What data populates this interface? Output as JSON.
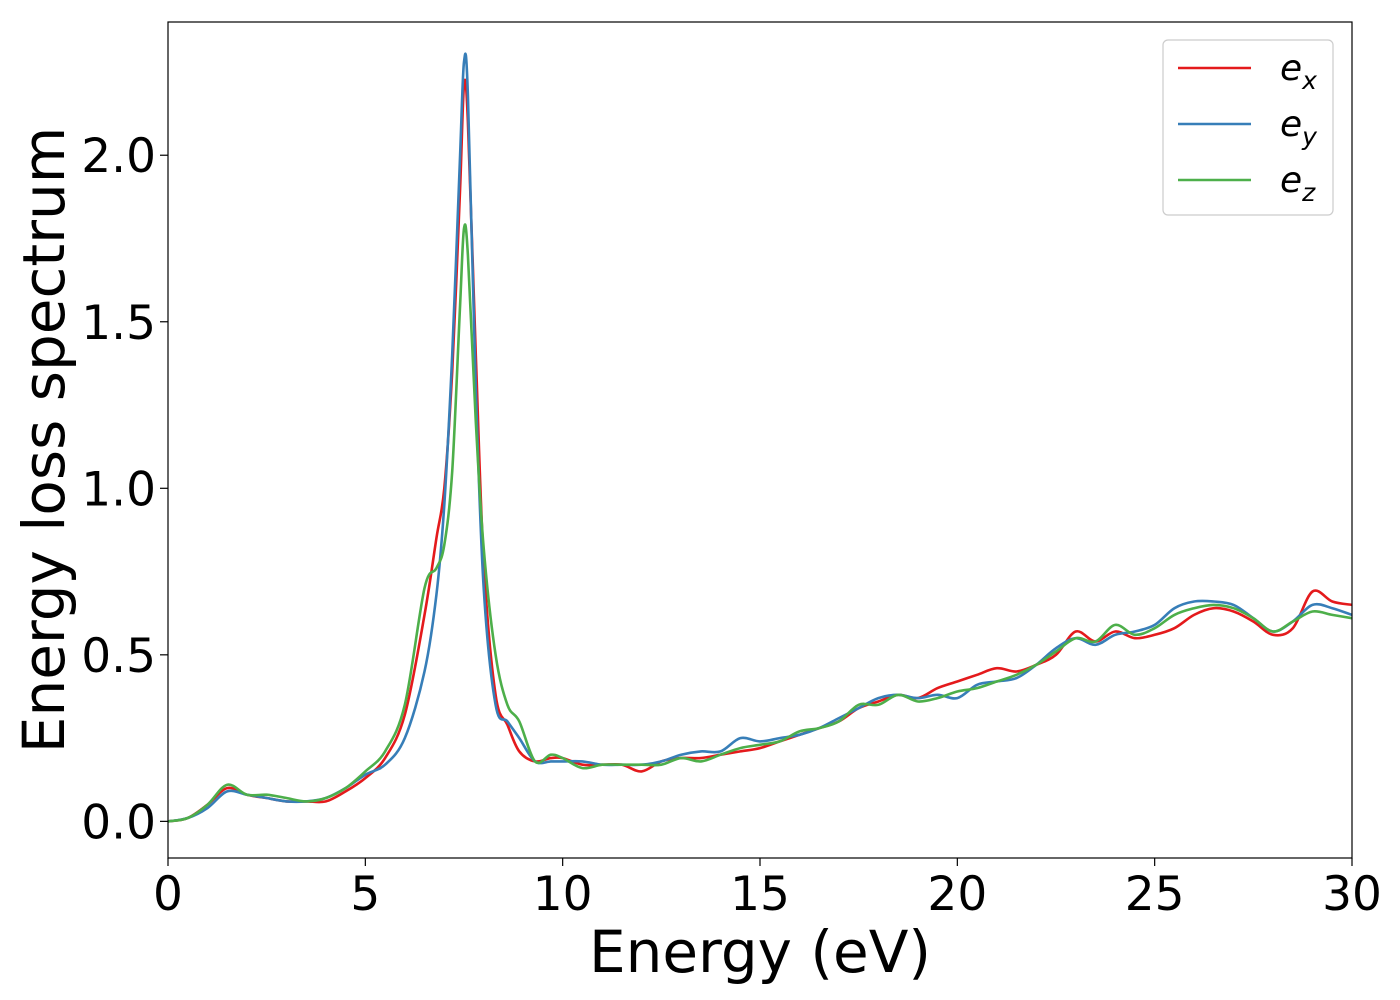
{
  "chart_data": {
    "type": "line",
    "title": "",
    "xlabel": "Energy (eV)",
    "ylabel": "Energy loss spectrum",
    "xlim": [
      0,
      30
    ],
    "ylim": [
      -0.11,
      2.4
    ],
    "xticks": [
      0,
      5,
      10,
      15,
      20,
      25,
      30
    ],
    "xtick_labels": [
      "0",
      "5",
      "10",
      "15",
      "20",
      "25",
      "30"
    ],
    "yticks": [
      0.0,
      0.5,
      1.0,
      1.5,
      2.0
    ],
    "ytick_labels": [
      "0.0",
      "0.5",
      "1.0",
      "1.5",
      "2.0"
    ],
    "grid": false,
    "legend_position": "top-right",
    "series": [
      {
        "name": "e",
        "subscript": "x",
        "color": "#e41a1c",
        "x": [
          0,
          0.5,
          1.0,
          1.5,
          2.0,
          2.5,
          3.0,
          3.5,
          4.0,
          4.5,
          5.0,
          5.5,
          6.0,
          6.5,
          6.8,
          7.0,
          7.2,
          7.4,
          7.5,
          7.6,
          7.8,
          8.0,
          8.3,
          8.6,
          8.9,
          9.3,
          9.7,
          10.0,
          10.5,
          11.0,
          11.5,
          12.0,
          12.5,
          13.0,
          13.5,
          14.0,
          14.5,
          15.0,
          15.5,
          16.0,
          16.5,
          17.0,
          17.5,
          18.0,
          18.5,
          19.0,
          19.5,
          20.0,
          20.5,
          21.0,
          21.5,
          22.0,
          22.5,
          23.0,
          23.5,
          24.0,
          24.5,
          25.0,
          25.5,
          26.0,
          26.5,
          27.0,
          27.5,
          28.0,
          28.5,
          29.0,
          29.5,
          30.0
        ],
        "y": [
          0.0,
          0.01,
          0.05,
          0.1,
          0.08,
          0.07,
          0.06,
          0.06,
          0.06,
          0.09,
          0.13,
          0.19,
          0.32,
          0.62,
          0.85,
          1.0,
          1.35,
          1.9,
          2.21,
          2.1,
          1.4,
          0.78,
          0.38,
          0.29,
          0.21,
          0.18,
          0.19,
          0.19,
          0.17,
          0.17,
          0.17,
          0.15,
          0.18,
          0.19,
          0.19,
          0.2,
          0.21,
          0.22,
          0.24,
          0.26,
          0.28,
          0.3,
          0.34,
          0.36,
          0.38,
          0.37,
          0.4,
          0.42,
          0.44,
          0.46,
          0.45,
          0.47,
          0.5,
          0.57,
          0.54,
          0.57,
          0.55,
          0.56,
          0.58,
          0.62,
          0.64,
          0.63,
          0.6,
          0.56,
          0.58,
          0.69,
          0.66,
          0.65
        ]
      },
      {
        "name": "e",
        "subscript": "y",
        "color": "#377eb8",
        "x": [
          0,
          0.5,
          1.0,
          1.5,
          2.0,
          2.5,
          3.0,
          3.5,
          4.0,
          4.5,
          5.0,
          5.5,
          6.0,
          6.5,
          6.8,
          7.0,
          7.2,
          7.4,
          7.5,
          7.6,
          7.8,
          8.0,
          8.3,
          8.6,
          8.9,
          9.3,
          9.7,
          10.0,
          10.5,
          11.0,
          11.5,
          12.0,
          12.5,
          13.0,
          13.5,
          14.0,
          14.5,
          15.0,
          15.5,
          16.0,
          16.5,
          17.0,
          17.5,
          18.0,
          18.5,
          19.0,
          19.5,
          20.0,
          20.5,
          21.0,
          21.5,
          22.0,
          22.5,
          23.0,
          23.5,
          24.0,
          24.5,
          25.0,
          25.5,
          26.0,
          26.5,
          27.0,
          27.5,
          28.0,
          28.5,
          29.0,
          29.5,
          30.0
        ],
        "y": [
          0.0,
          0.01,
          0.04,
          0.09,
          0.08,
          0.07,
          0.06,
          0.06,
          0.07,
          0.1,
          0.14,
          0.17,
          0.25,
          0.45,
          0.68,
          0.95,
          1.4,
          2.0,
          2.28,
          2.18,
          1.3,
          0.7,
          0.35,
          0.3,
          0.25,
          0.18,
          0.18,
          0.18,
          0.18,
          0.17,
          0.17,
          0.17,
          0.18,
          0.2,
          0.21,
          0.21,
          0.25,
          0.24,
          0.25,
          0.26,
          0.28,
          0.31,
          0.34,
          0.37,
          0.38,
          0.37,
          0.38,
          0.37,
          0.41,
          0.42,
          0.43,
          0.47,
          0.52,
          0.55,
          0.53,
          0.56,
          0.57,
          0.59,
          0.64,
          0.66,
          0.66,
          0.65,
          0.61,
          0.57,
          0.6,
          0.65,
          0.64,
          0.62
        ]
      },
      {
        "name": "e",
        "subscript": "z",
        "color": "#4daf4a",
        "x": [
          0,
          0.5,
          1.0,
          1.5,
          2.0,
          2.5,
          3.0,
          3.5,
          4.0,
          4.5,
          5.0,
          5.5,
          6.0,
          6.5,
          6.8,
          7.0,
          7.2,
          7.4,
          7.5,
          7.6,
          7.8,
          8.0,
          8.3,
          8.6,
          8.9,
          9.3,
          9.7,
          10.0,
          10.5,
          11.0,
          11.5,
          12.0,
          12.5,
          13.0,
          13.5,
          14.0,
          14.5,
          15.0,
          15.5,
          16.0,
          16.5,
          17.0,
          17.5,
          18.0,
          18.5,
          19.0,
          19.5,
          20.0,
          20.5,
          21.0,
          21.5,
          22.0,
          22.5,
          23.0,
          23.5,
          24.0,
          24.5,
          25.0,
          25.5,
          26.0,
          26.5,
          27.0,
          27.5,
          28.0,
          28.5,
          29.0,
          29.5,
          30.0
        ],
        "y": [
          0.0,
          0.01,
          0.05,
          0.11,
          0.08,
          0.08,
          0.07,
          0.06,
          0.07,
          0.1,
          0.15,
          0.21,
          0.35,
          0.7,
          0.76,
          0.83,
          1.05,
          1.55,
          1.78,
          1.7,
          1.2,
          0.82,
          0.5,
          0.35,
          0.3,
          0.18,
          0.2,
          0.19,
          0.16,
          0.17,
          0.17,
          0.17,
          0.17,
          0.19,
          0.18,
          0.2,
          0.22,
          0.23,
          0.24,
          0.27,
          0.28,
          0.3,
          0.35,
          0.35,
          0.38,
          0.36,
          0.37,
          0.39,
          0.4,
          0.42,
          0.44,
          0.47,
          0.51,
          0.55,
          0.54,
          0.59,
          0.56,
          0.58,
          0.62,
          0.64,
          0.65,
          0.64,
          0.61,
          0.57,
          0.6,
          0.63,
          0.62,
          0.61
        ]
      }
    ]
  }
}
